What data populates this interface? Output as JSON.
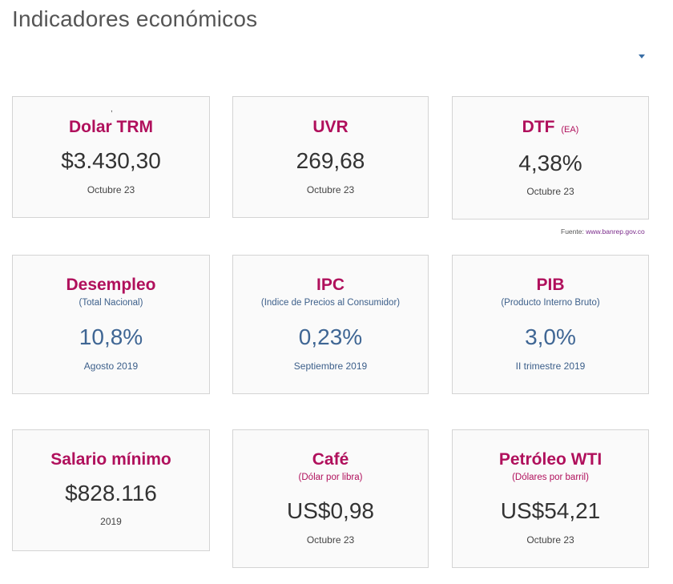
{
  "page": {
    "title": "Indicadores económicos"
  },
  "source": {
    "label": "Fuente:",
    "link": "www.banrep.gov.co"
  },
  "cards": {
    "trm": {
      "mark": ",",
      "title": "Dolar TRM",
      "value": "$3.430,30",
      "date": "Octubre 23"
    },
    "uvr": {
      "title": "UVR",
      "value": "269,68",
      "date": "Octubre 23"
    },
    "dtf": {
      "title": "DTF",
      "title_suffix": "(EA)",
      "value": "4,38%",
      "date": "Octubre 23"
    },
    "desempleo": {
      "title": "Desempleo",
      "subtitle": "(Total Nacional)",
      "value": "10,8%",
      "date": "Agosto 2019"
    },
    "ipc": {
      "title": "IPC",
      "subtitle": "(Indice de Precios al Consumidor)",
      "value": "0,23%",
      "date": "Septiembre 2019"
    },
    "pib": {
      "title": "PIB",
      "subtitle": "(Producto Interno Bruto)",
      "value": "3,0%",
      "date": "II trimestre 2019"
    },
    "salario": {
      "title": "Salario mínimo",
      "value": "$828.116",
      "date": "2019"
    },
    "cafe": {
      "title": "Café",
      "subtitle": "(Dólar por libra)",
      "value": "US$0,98",
      "date": "Octubre 23"
    },
    "petroleo": {
      "title": "Petróleo WTI",
      "subtitle": "(Dólares por barril)",
      "value": "US$54,21",
      "date": "Octubre 23"
    }
  }
}
